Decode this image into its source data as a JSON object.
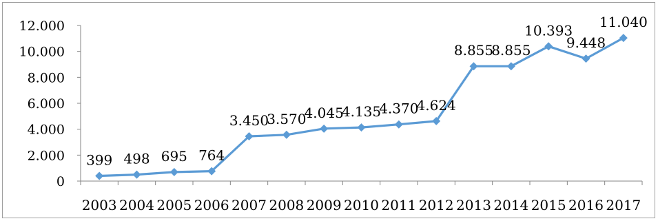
{
  "chart_data": {
    "type": "line",
    "title": "",
    "xlabel": "",
    "ylabel": "",
    "categories": [
      "2003",
      "2004",
      "2005",
      "2006",
      "2007",
      "2008",
      "2009",
      "2010",
      "2011",
      "2012",
      "2013",
      "2014",
      "2015",
      "2016",
      "2017"
    ],
    "series": [
      {
        "values": [
          399,
          498,
          695,
          764,
          3450,
          3570,
          4045,
          4135,
          4370,
          4624,
          8855,
          8855,
          10393,
          9448,
          11040
        ],
        "labels": [
          "399",
          "498",
          "695",
          "764",
          "3.450",
          "3.570",
          "4.045",
          "4.135",
          "4.370",
          "4.624",
          "8.855",
          "8.855",
          "10.393",
          "9.448",
          "11.040"
        ],
        "color": "#5B9BD5"
      }
    ],
    "ylim": [
      0,
      12000
    ],
    "yticks": [
      0,
      2000,
      4000,
      6000,
      8000,
      10000,
      12000
    ],
    "ytick_labels": [
      "0",
      "2.000",
      "4.000",
      "6.000",
      "8.000",
      "10.000",
      "12.000"
    ],
    "grid": false,
    "legend": "none",
    "colors": {
      "line": "#5B9BD5",
      "axis": "#868686",
      "frame": "#9e9e9e"
    }
  }
}
